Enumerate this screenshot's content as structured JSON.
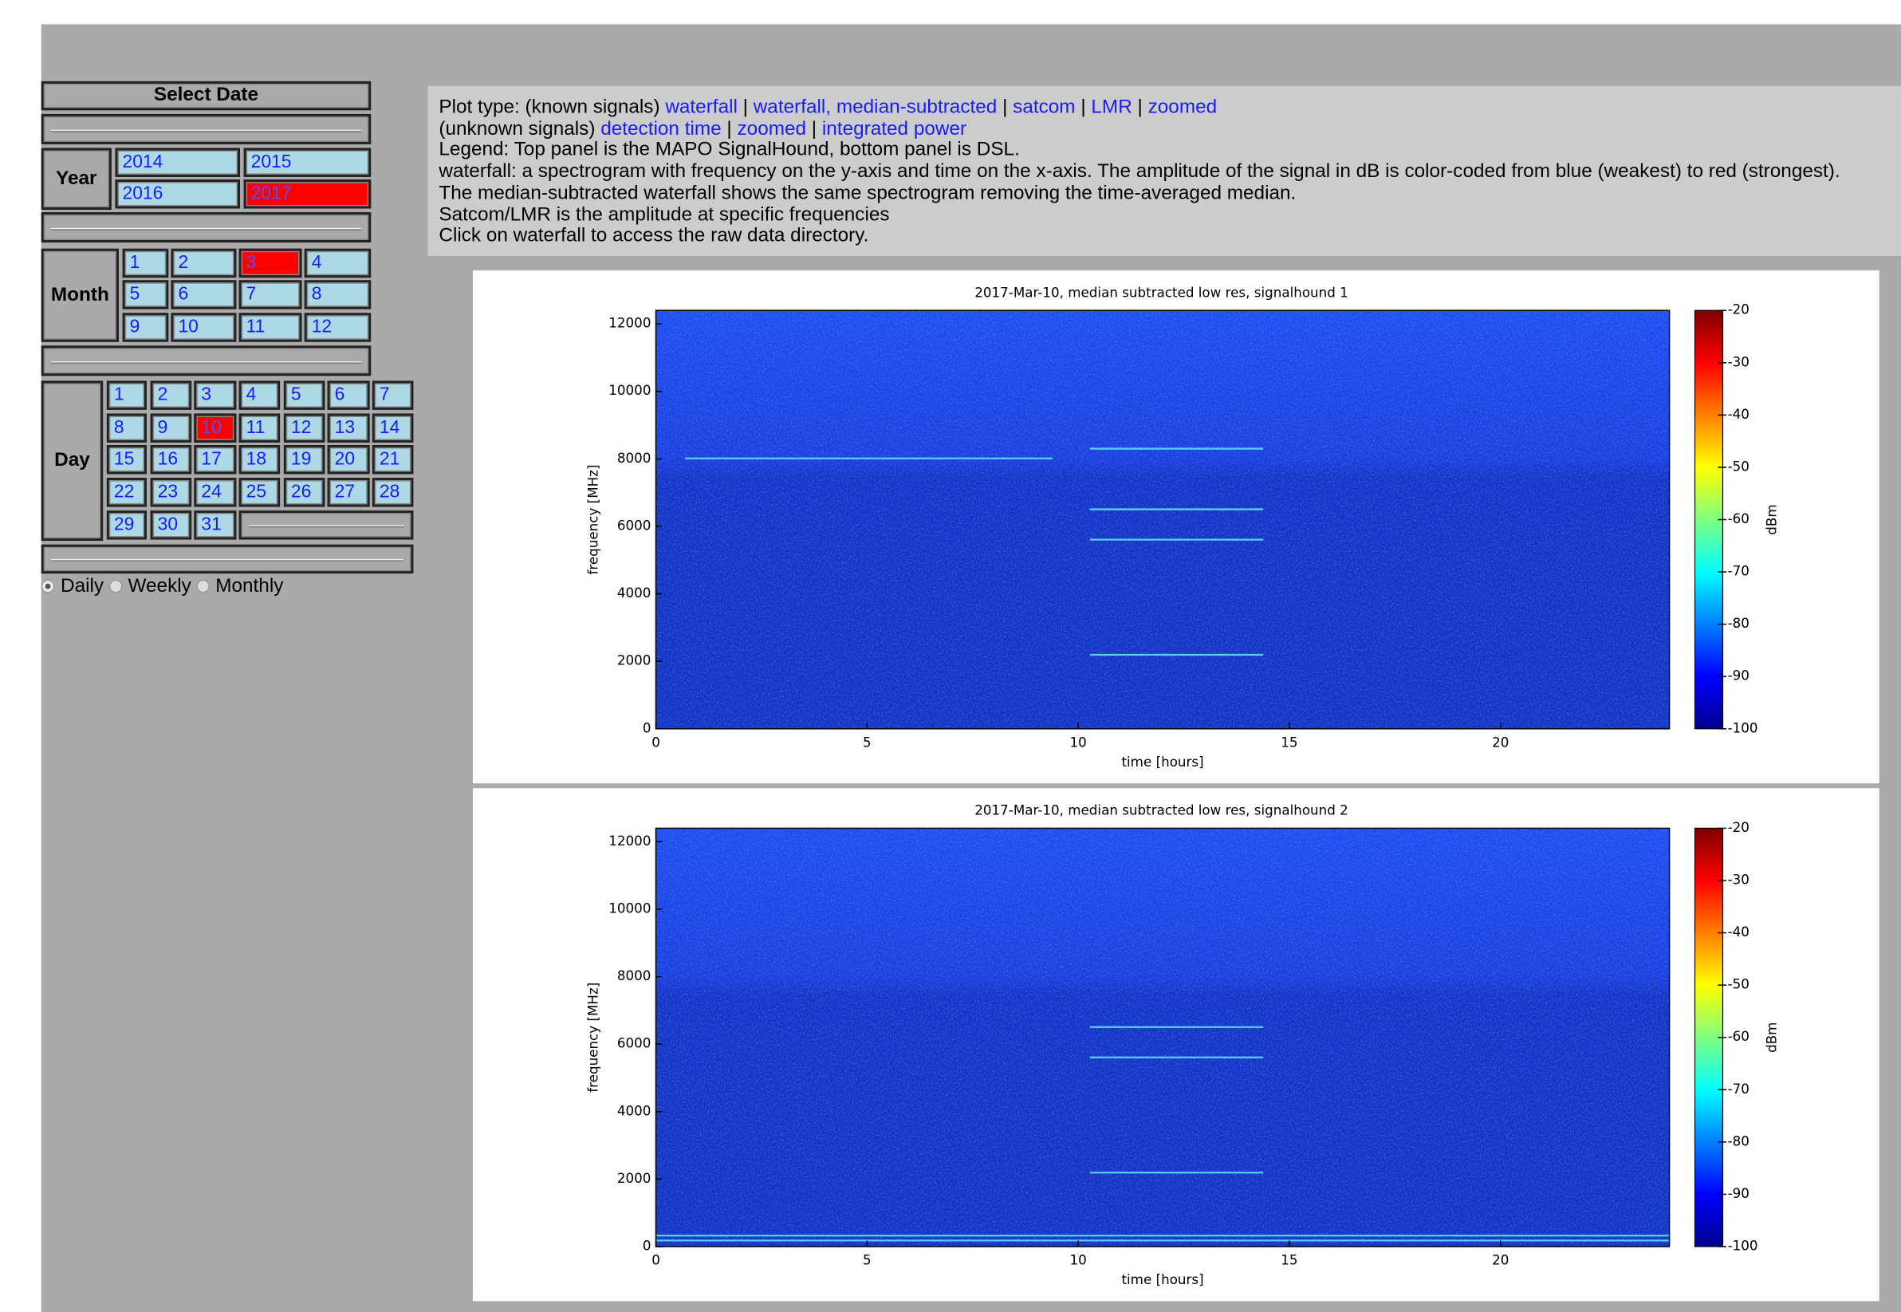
{
  "sidebar": {
    "title": "Select Date",
    "year": {
      "label": "Year",
      "options": [
        "2014",
        "2015",
        "2016",
        "2017"
      ],
      "selected": "2017"
    },
    "month": {
      "label": "Month",
      "options": [
        "1",
        "2",
        "3",
        "4",
        "5",
        "6",
        "7",
        "8",
        "9",
        "10",
        "11",
        "12"
      ],
      "selected": "3"
    },
    "day": {
      "label": "Day",
      "options": [
        "1",
        "2",
        "3",
        "4",
        "5",
        "6",
        "7",
        "8",
        "9",
        "10",
        "11",
        "12",
        "13",
        "14",
        "15",
        "16",
        "17",
        "18",
        "19",
        "20",
        "21",
        "22",
        "23",
        "24",
        "25",
        "26",
        "27",
        "28",
        "29",
        "30",
        "31"
      ],
      "selected": "10"
    },
    "view": {
      "options": [
        "Daily",
        "Weekly",
        "Monthly"
      ],
      "selected": "Daily"
    }
  },
  "info": {
    "lines": [
      [
        {
          "text": "Plot type: (known signals) ",
          "link": false
        },
        {
          "text": "waterfall",
          "link": true
        },
        {
          "text": " | ",
          "link": false
        },
        {
          "text": "waterfall, median-subtracted",
          "link": true
        },
        {
          "text": " | ",
          "link": false
        },
        {
          "text": "satcom",
          "link": true
        },
        {
          "text": " | ",
          "link": false
        },
        {
          "text": "LMR",
          "link": true
        },
        {
          "text": " | ",
          "link": false
        },
        {
          "text": "zoomed",
          "link": true
        }
      ],
      [
        {
          "text": "(unknown signals) ",
          "link": false
        },
        {
          "text": "detection time",
          "link": true
        },
        {
          "text": " | ",
          "link": false
        },
        {
          "text": "zoomed",
          "link": true
        },
        {
          "text": " | ",
          "link": false
        },
        {
          "text": "integrated power",
          "link": true
        }
      ],
      [
        {
          "text": "Legend: Top panel is the MAPO SignalHound, bottom panel is DSL.",
          "link": false
        }
      ],
      [
        {
          "text": "waterfall: a spectrogram with frequency on the y-axis and time on the x-axis. The amplitude of the signal in dB is color-coded from blue (weakest) to red (strongest).",
          "link": false
        }
      ],
      [
        {
          "text": "The median-subtracted waterfall shows the same spectrogram removing the time-averaged median.",
          "link": false
        }
      ],
      [
        {
          "text": "Satcom/LMR is the amplitude at specific frequencies",
          "link": false
        }
      ],
      [
        {
          "text": "Click on waterfall to access the raw data directory.",
          "link": false
        }
      ]
    ]
  },
  "plots": [
    {
      "title": "2017-Mar-10, median subtracted low res, signalhound 1",
      "xlabel": "time [hours]",
      "ylabel": "frequency [MHz]",
      "colorbar_label": "dBm",
      "xlim": [
        0,
        24
      ],
      "xticks": [
        0,
        5,
        10,
        15,
        20
      ],
      "ylim": [
        0,
        12400
      ],
      "yticks": [
        0,
        2000,
        4000,
        6000,
        8000,
        10000,
        12000
      ],
      "clim": [
        -100,
        -20
      ],
      "cticks": [
        -20,
        -30,
        -40,
        -50,
        -60,
        -70,
        -80,
        -90,
        -100
      ]
    },
    {
      "title": "2017-Mar-10, median subtracted low res, signalhound 2",
      "xlabel": "time [hours]",
      "ylabel": "frequency [MHz]",
      "colorbar_label": "dBm",
      "xlim": [
        0,
        24
      ],
      "xticks": [
        0,
        5,
        10,
        15,
        20
      ],
      "ylim": [
        0,
        12400
      ],
      "yticks": [
        0,
        2000,
        4000,
        6000,
        8000,
        10000,
        12000
      ],
      "clim": [
        -100,
        -20
      ],
      "cticks": [
        -20,
        -30,
        -40,
        -50,
        -60,
        -70,
        -80,
        -90,
        -100
      ]
    }
  ]
}
